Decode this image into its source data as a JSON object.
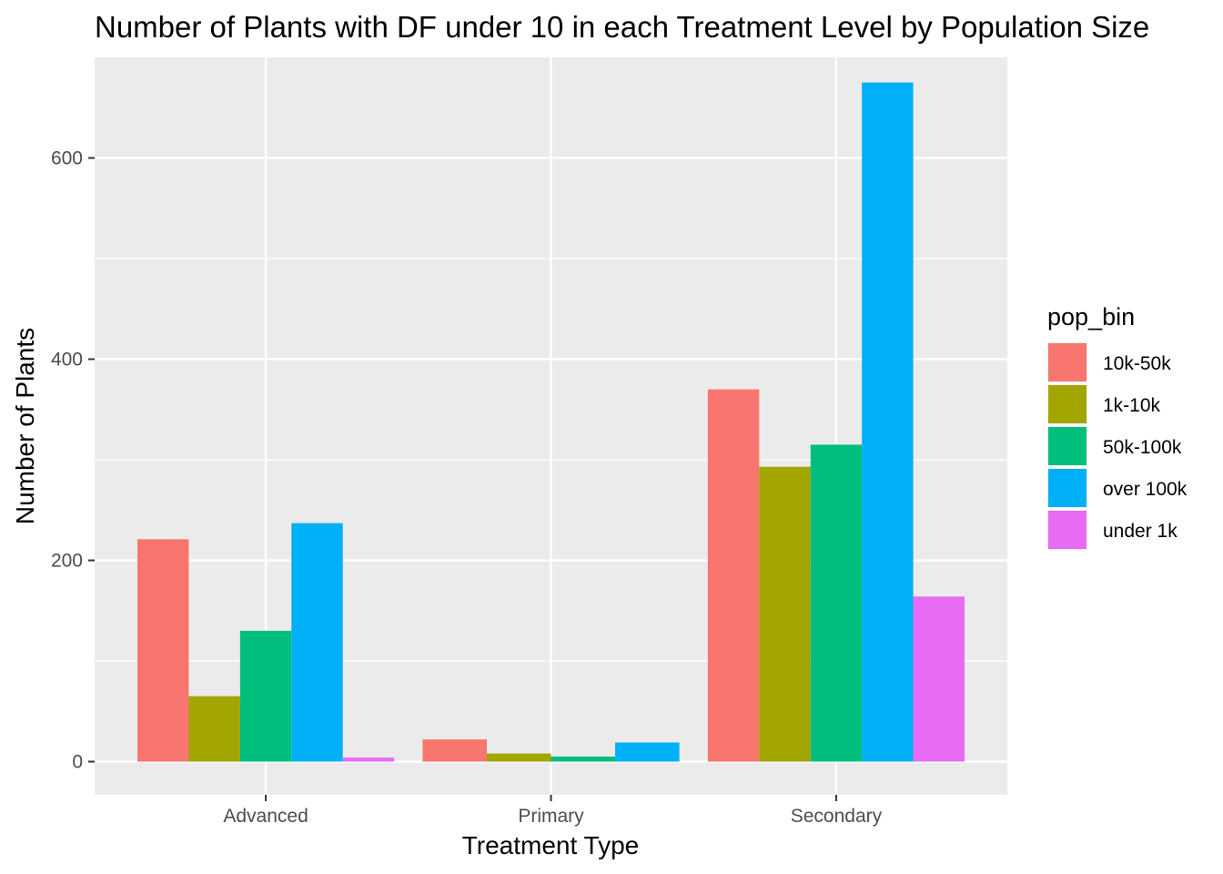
{
  "chart_data": {
    "type": "bar",
    "title": "Number of Plants with DF under 10 in each Treatment Level by Population Size",
    "xlabel": "Treatment Type",
    "ylabel": "Number of Plants",
    "categories": [
      "Advanced",
      "Primary",
      "Secondary"
    ],
    "ylim": [
      -33,
      700
    ],
    "yticks": [
      0,
      200,
      400,
      600
    ],
    "grid": true,
    "legend": {
      "title": "pop_bin",
      "placement": "right"
    },
    "series": [
      {
        "name": "10k-50k",
        "color": "#F8766D",
        "values": [
          221,
          22,
          370
        ]
      },
      {
        "name": "1k-10k",
        "color": "#A3A500",
        "values": [
          65,
          8,
          293
        ]
      },
      {
        "name": "50k-100k",
        "color": "#00BF7D",
        "values": [
          130,
          5,
          315
        ]
      },
      {
        "name": "over 100k",
        "color": "#00B0F6",
        "values": [
          237,
          19,
          675
        ]
      },
      {
        "name": "under 1k",
        "color": "#E76BF3",
        "values": [
          4,
          null,
          164
        ]
      }
    ]
  }
}
